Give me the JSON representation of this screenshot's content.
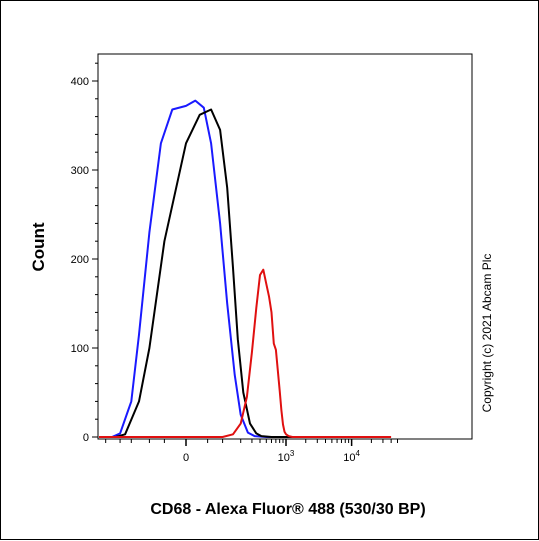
{
  "chart_data": {
    "type": "histogram",
    "title": "",
    "xlabel": "CD68 - Alexa Fluor® 488 (530/30 BP)",
    "ylabel": "Count",
    "x_scale": "biexponential",
    "ylim": [
      0,
      440
    ],
    "y_ticks": [
      0,
      100,
      200,
      300,
      400
    ],
    "x_ticks": [
      {
        "value": 0,
        "label": "0",
        "exp": ""
      },
      {
        "value": 1000,
        "label": "10",
        "exp": "3"
      },
      {
        "value": 10000,
        "label": "10",
        "exp": "4"
      }
    ],
    "annotation": "Copyright (c) 2021 Abcam Plc",
    "grid": false,
    "legend": "none",
    "series": [
      {
        "color": "#1a1aff",
        "x": [
          -700,
          -400,
          -300,
          -200,
          -150,
          -100,
          -60,
          -30,
          0,
          20,
          40,
          60,
          90,
          120,
          160,
          200,
          260,
          330,
          500,
          5000
        ],
        "y": [
          0,
          0,
          4,
          40,
          115,
          230,
          330,
          368,
          372,
          378,
          370,
          330,
          240,
          150,
          70,
          25,
          5,
          1,
          0,
          0
        ]
      },
      {
        "color": "#000000",
        "x": [
          -700,
          -350,
          -250,
          -150,
          -100,
          -50,
          0,
          30,
          60,
          90,
          120,
          150,
          180,
          220,
          280,
          350,
          420,
          600,
          5000
        ],
        "y": [
          0,
          0,
          3,
          40,
          100,
          220,
          330,
          362,
          368,
          345,
          280,
          190,
          110,
          50,
          15,
          4,
          1,
          0,
          0
        ]
      },
      {
        "color": "#e01010",
        "x": [
          -700,
          100,
          150,
          200,
          250,
          300,
          350,
          400,
          450,
          500,
          550,
          600,
          650,
          700,
          750,
          800,
          850,
          900,
          950,
          1000,
          1100,
          1250,
          1500,
          10000,
          40000
        ],
        "y": [
          0,
          0,
          3,
          15,
          45,
          95,
          145,
          182,
          188,
          172,
          158,
          140,
          105,
          98,
          75,
          52,
          30,
          14,
          6,
          3,
          1,
          0,
          0,
          0,
          0
        ]
      }
    ]
  }
}
